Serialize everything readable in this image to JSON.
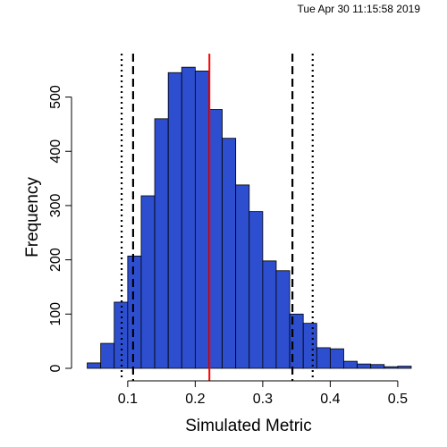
{
  "timestamp": "Tue Apr 30 11:15:58 2019",
  "chart_data": {
    "type": "bar",
    "xlabel": "Simulated Metric",
    "ylabel": "Frequency",
    "xlim": [
      0.03,
      0.52
    ],
    "ylim": [
      0,
      580
    ],
    "x_ticks": [
      0.1,
      0.2,
      0.3,
      0.4,
      0.5
    ],
    "x_tick_labels": [
      "0.1",
      "0.2",
      "0.3",
      "0.4",
      "0.5"
    ],
    "y_ticks": [
      0,
      100,
      200,
      300,
      400,
      500
    ],
    "y_tick_labels": [
      "0",
      "100",
      "200",
      "300",
      "400",
      "500"
    ],
    "bin_edges": [
      0.04,
      0.06,
      0.08,
      0.1,
      0.12,
      0.14,
      0.16,
      0.18,
      0.2,
      0.22,
      0.24,
      0.26,
      0.28,
      0.3,
      0.32,
      0.34,
      0.36,
      0.38,
      0.4,
      0.42,
      0.44,
      0.46,
      0.48,
      0.5,
      0.52
    ],
    "counts": [
      10,
      46,
      122,
      207,
      318,
      460,
      545,
      555,
      548,
      477,
      424,
      338,
      289,
      198,
      180,
      100,
      83,
      38,
      36,
      13,
      8,
      7,
      3,
      4
    ],
    "bar_color": "#2d4fcf",
    "reference_lines": [
      {
        "x": 0.221,
        "style": "solid",
        "color": "#ff0000"
      },
      {
        "x": 0.108,
        "style": "dashed",
        "color": "#000000"
      },
      {
        "x": 0.344,
        "style": "dashed",
        "color": "#000000"
      },
      {
        "x": 0.091,
        "style": "dotted",
        "color": "#000000"
      },
      {
        "x": 0.374,
        "style": "dotted",
        "color": "#000000"
      }
    ]
  }
}
